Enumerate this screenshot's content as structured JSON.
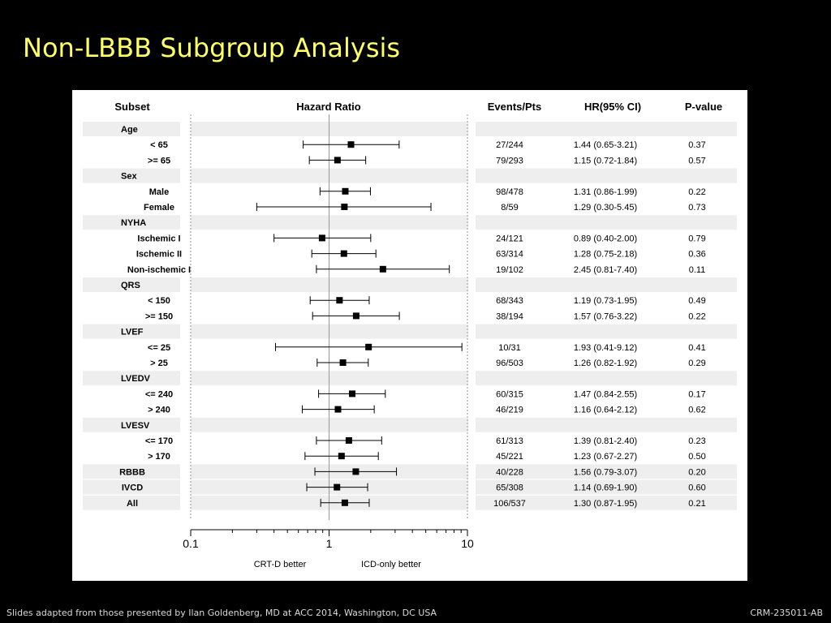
{
  "slide": {
    "title": "Non-LBBB Subgroup Analysis",
    "footer_left": "Slides adapted from those presented by Ilan Goldenberg, MD at  ACC 2014, Washington, DC USA",
    "footer_right": "CRM-235011-AB"
  },
  "chart_data": {
    "type": "forest",
    "x_scale": "log",
    "xlim": [
      0.1,
      10
    ],
    "x_ticks": [
      "0.1",
      "1",
      "10"
    ],
    "reference_line": 1,
    "headers": {
      "subset": "Subset",
      "plot": "Hazard Ratio",
      "events": "Events/Pts",
      "hr": "HR(95% CI)",
      "p": "P-value"
    },
    "left_annotation": "CRT-D better",
    "right_annotation": "ICD-only better",
    "rows": [
      {
        "label": "Age",
        "kind": "group"
      },
      {
        "label": "< 65",
        "kind": "item",
        "hr": 1.44,
        "lo": 0.65,
        "hi": 3.21,
        "events": "27/244",
        "hr_ci": "1.44 (0.65-3.21)",
        "p": "0.37"
      },
      {
        "label": ">= 65",
        "kind": "item",
        "hr": 1.15,
        "lo": 0.72,
        "hi": 1.84,
        "events": "79/293",
        "hr_ci": "1.15 (0.72-1.84)",
        "p": "0.57"
      },
      {
        "label": "Sex",
        "kind": "group"
      },
      {
        "label": "Male",
        "kind": "item",
        "hr": 1.31,
        "lo": 0.86,
        "hi": 1.99,
        "events": "98/478",
        "hr_ci": "1.31 (0.86-1.99)",
        "p": "0.22"
      },
      {
        "label": "Female",
        "kind": "item",
        "hr": 1.29,
        "lo": 0.3,
        "hi": 5.45,
        "events": "8/59",
        "hr_ci": "1.29 (0.30-5.45)",
        "p": "0.73"
      },
      {
        "label": "NYHA",
        "kind": "group"
      },
      {
        "label": "Ischemic I",
        "kind": "item",
        "hr": 0.89,
        "lo": 0.4,
        "hi": 2.0,
        "events": "24/121",
        "hr_ci": "0.89 (0.40-2.00)",
        "p": "0.79"
      },
      {
        "label": "Ischemic II",
        "kind": "item",
        "hr": 1.28,
        "lo": 0.75,
        "hi": 2.18,
        "events": "63/314",
        "hr_ci": "1.28 (0.75-2.18)",
        "p": "0.36"
      },
      {
        "label": "Non-ischemic I",
        "kind": "item",
        "hr": 2.45,
        "lo": 0.81,
        "hi": 7.4,
        "events": "19/102",
        "hr_ci": "2.45 (0.81-7.40)",
        "p": "0.11"
      },
      {
        "label": "QRS",
        "kind": "group"
      },
      {
        "label": "< 150",
        "kind": "item",
        "hr": 1.19,
        "lo": 0.73,
        "hi": 1.95,
        "events": "68/343",
        "hr_ci": "1.19 (0.73-1.95)",
        "p": "0.49"
      },
      {
        "label": ">= 150",
        "kind": "item",
        "hr": 1.57,
        "lo": 0.76,
        "hi": 3.22,
        "events": "38/194",
        "hr_ci": "1.57 (0.76-3.22)",
        "p": "0.22"
      },
      {
        "label": "LVEF",
        "kind": "group"
      },
      {
        "label": "<= 25",
        "kind": "item",
        "hr": 1.93,
        "lo": 0.41,
        "hi": 9.12,
        "events": "10/31",
        "hr_ci": "1.93 (0.41-9.12)",
        "p": "0.41"
      },
      {
        "label": "> 25",
        "kind": "item",
        "hr": 1.26,
        "lo": 0.82,
        "hi": 1.92,
        "events": "96/503",
        "hr_ci": "1.26 (0.82-1.92)",
        "p": "0.29"
      },
      {
        "label": "LVEDV",
        "kind": "group"
      },
      {
        "label": "<= 240",
        "kind": "item",
        "hr": 1.47,
        "lo": 0.84,
        "hi": 2.55,
        "events": "60/315",
        "hr_ci": "1.47 (0.84-2.55)",
        "p": "0.17"
      },
      {
        "label": "> 240",
        "kind": "item",
        "hr": 1.16,
        "lo": 0.64,
        "hi": 2.12,
        "events": "46/219",
        "hr_ci": "1.16 (0.64-2.12)",
        "p": "0.62"
      },
      {
        "label": "LVESV",
        "kind": "group"
      },
      {
        "label": "<= 170",
        "kind": "item",
        "hr": 1.39,
        "lo": 0.81,
        "hi": 2.4,
        "events": "61/313",
        "hr_ci": "1.39 (0.81-2.40)",
        "p": "0.23"
      },
      {
        "label": "> 170",
        "kind": "item",
        "hr": 1.23,
        "lo": 0.67,
        "hi": 2.27,
        "events": "45/221",
        "hr_ci": "1.23 (0.67-2.27)",
        "p": "0.50"
      },
      {
        "label": "RBBB",
        "kind": "summary",
        "hr": 1.56,
        "lo": 0.79,
        "hi": 3.07,
        "events": "40/228",
        "hr_ci": "1.56 (0.79-3.07)",
        "p": "0.20"
      },
      {
        "label": "IVCD",
        "kind": "summary",
        "hr": 1.14,
        "lo": 0.69,
        "hi": 1.9,
        "events": "65/308",
        "hr_ci": "1.14 (0.69-1.90)",
        "p": "0.60"
      },
      {
        "label": "All",
        "kind": "summary",
        "hr": 1.3,
        "lo": 0.87,
        "hi": 1.95,
        "events": "106/537",
        "hr_ci": "1.30 (0.87-1.95)",
        "p": "0.21"
      }
    ]
  }
}
